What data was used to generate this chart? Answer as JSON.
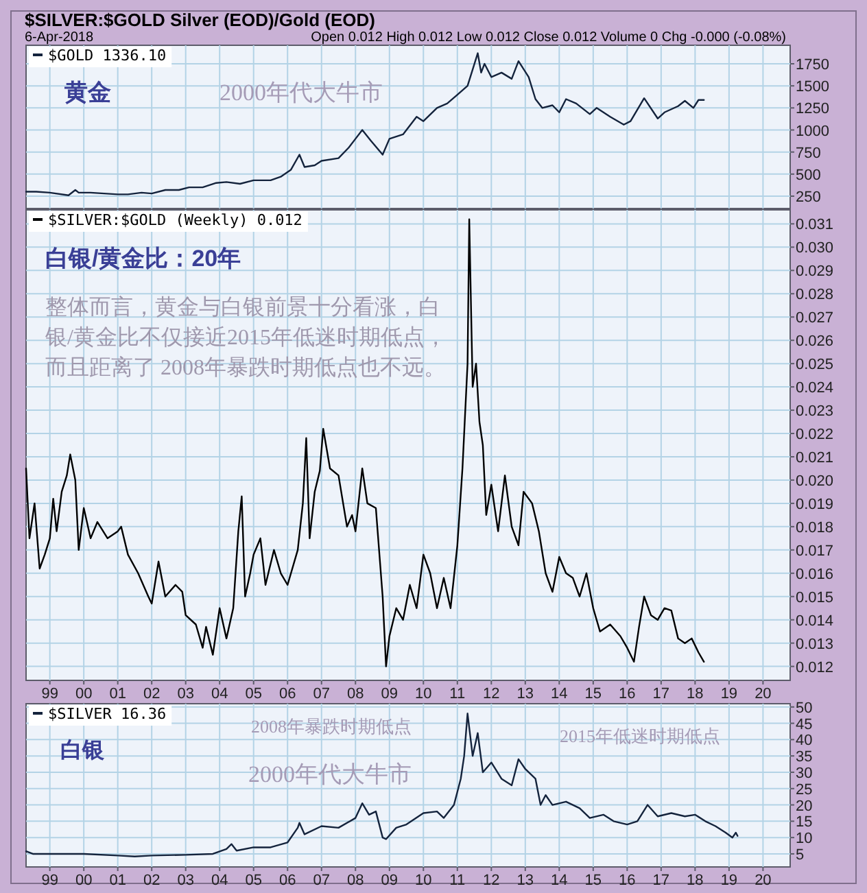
{
  "chart_data": [
    {
      "type": "line",
      "title": "$SILVER:$GOLD Silver (EOD)/Gold (EOD)",
      "subtitle": "6-Apr-2018",
      "annotations": [
        "Open 0.012 High 0.012 Low 0.012 Close 0.012 Volume 0 Chg -0.000 (-0.08%)",
        "黄金",
        "2000年代大牛市"
      ],
      "series": [
        {
          "name": "$GOLD 1336.10",
          "color": "#14233c",
          "x": [
            1998.3,
            1998.6,
            1999.0,
            1999.55,
            1999.75,
            1999.85,
            2000.2,
            2000.6,
            2001.0,
            2001.3,
            2001.7,
            2002.0,
            2002.4,
            2002.8,
            2003.1,
            2003.5,
            2003.9,
            2004.2,
            2004.6,
            2005.0,
            2005.5,
            2005.8,
            2006.1,
            2006.35,
            2006.5,
            2006.8,
            2007.0,
            2007.5,
            2007.8,
            2008.0,
            2008.2,
            2008.45,
            2008.8,
            2009.0,
            2009.4,
            2009.8,
            2010.0,
            2010.4,
            2010.7,
            2011.0,
            2011.3,
            2011.6,
            2011.7,
            2011.8,
            2012.0,
            2012.3,
            2012.6,
            2012.8,
            2013.1,
            2013.3,
            2013.5,
            2013.8,
            2014.0,
            2014.2,
            2014.5,
            2014.9,
            2015.1,
            2015.5,
            2015.9,
            2016.1,
            2016.5,
            2016.9,
            2017.1,
            2017.5,
            2017.7,
            2017.95,
            2018.1,
            2018.26
          ],
          "values": [
            300,
            300,
            290,
            260,
            320,
            290,
            290,
            280,
            270,
            270,
            290,
            280,
            320,
            320,
            350,
            350,
            400,
            410,
            390,
            430,
            430,
            470,
            550,
            720,
            580,
            600,
            650,
            680,
            800,
            900,
            1000,
            880,
            720,
            900,
            950,
            1150,
            1100,
            1250,
            1300,
            1400,
            1500,
            1870,
            1650,
            1750,
            1600,
            1650,
            1580,
            1780,
            1600,
            1350,
            1250,
            1280,
            1200,
            1350,
            1300,
            1180,
            1250,
            1150,
            1060,
            1100,
            1360,
            1130,
            1200,
            1270,
            1330,
            1250,
            1340,
            1340
          ]
        }
      ],
      "xlim": [
        1998.3,
        2020.8
      ],
      "xticks": [
        {
          "value": 1999,
          "label": null
        },
        {
          "value": 2000,
          "label": null
        },
        {
          "value": 2001,
          "label": null
        },
        {
          "value": 2002,
          "label": null
        },
        {
          "value": 2003,
          "label": null
        },
        {
          "value": 2004,
          "label": null
        },
        {
          "value": 2005,
          "label": null
        },
        {
          "value": 2006,
          "label": null
        },
        {
          "value": 2007,
          "label": null
        },
        {
          "value": 2008,
          "label": null
        },
        {
          "value": 2009,
          "label": null
        },
        {
          "value": 2010,
          "label": null
        },
        {
          "value": 2011,
          "label": null
        },
        {
          "value": 2012,
          "label": null
        },
        {
          "value": 2013,
          "label": null
        },
        {
          "value": 2014,
          "label": null
        },
        {
          "value": 2015,
          "label": null
        },
        {
          "value": 2016,
          "label": null
        },
        {
          "value": 2017,
          "label": null
        },
        {
          "value": 2018,
          "label": null
        },
        {
          "value": 2019,
          "label": null
        },
        {
          "value": 2020,
          "label": null
        }
      ],
      "ylim": [
        110,
        1960
      ],
      "yticks": [
        250,
        500,
        750,
        1000,
        1250,
        1500,
        1750
      ],
      "tick_labels": "y",
      "grid": true,
      "legend": "top left"
    },
    {
      "type": "line",
      "annotations": [
        "白银/黄金比：20年",
        "整体而言，黄金与白银前景十分看涨，白银/黄金比不仅接近2015年低迷时期低点，而且距离了 2008年暴跌时期低点也不远。"
      ],
      "series": [
        {
          "name": "$SILVER:$GOLD (Weekly) 0.012",
          "color": "#000000",
          "x": [
            1998.3,
            1998.4,
            1998.55,
            1998.7,
            1998.85,
            1999.0,
            1999.1,
            1999.2,
            1999.35,
            1999.5,
            1999.6,
            1999.75,
            1999.85,
            2000.0,
            2000.2,
            2000.4,
            2000.7,
            2001.0,
            2001.1,
            2001.3,
            2001.6,
            2001.9,
            2002.0,
            2002.2,
            2002.4,
            2002.7,
            2002.9,
            2003.0,
            2003.3,
            2003.5,
            2003.6,
            2003.8,
            2004.0,
            2004.2,
            2004.4,
            2004.55,
            2004.65,
            2004.75,
            2004.9,
            2005.0,
            2005.2,
            2005.35,
            2005.6,
            2005.8,
            2006.0,
            2006.3,
            2006.45,
            2006.55,
            2006.65,
            2006.8,
            2006.95,
            2007.05,
            2007.25,
            2007.5,
            2007.75,
            2007.9,
            2008.0,
            2008.2,
            2008.35,
            2008.6,
            2008.8,
            2008.9,
            2009.0,
            2009.2,
            2009.4,
            2009.6,
            2009.8,
            2010.0,
            2010.2,
            2010.4,
            2010.6,
            2010.8,
            2011.0,
            2011.15,
            2011.3,
            2011.35,
            2011.45,
            2011.55,
            2011.65,
            2011.75,
            2011.85,
            2012.0,
            2012.2,
            2012.4,
            2012.6,
            2012.8,
            2012.95,
            2013.2,
            2013.4,
            2013.6,
            2013.8,
            2014.0,
            2014.2,
            2014.4,
            2014.6,
            2014.8,
            2015.0,
            2015.2,
            2015.5,
            2015.8,
            2016.0,
            2016.2,
            2016.35,
            2016.5,
            2016.7,
            2016.9,
            2017.1,
            2017.3,
            2017.5,
            2017.7,
            2017.9,
            2018.1,
            2018.26
          ],
          "values": [
            0.0205,
            0.0175,
            0.019,
            0.0162,
            0.0168,
            0.0175,
            0.0192,
            0.0178,
            0.0195,
            0.0202,
            0.0211,
            0.02,
            0.017,
            0.0188,
            0.0175,
            0.0182,
            0.0175,
            0.0178,
            0.018,
            0.0168,
            0.016,
            0.015,
            0.0147,
            0.0165,
            0.015,
            0.0155,
            0.0152,
            0.0142,
            0.0138,
            0.0128,
            0.0137,
            0.0125,
            0.0145,
            0.0132,
            0.0145,
            0.0178,
            0.0193,
            0.015,
            0.016,
            0.0168,
            0.0175,
            0.0155,
            0.017,
            0.016,
            0.0155,
            0.017,
            0.019,
            0.0218,
            0.0175,
            0.0195,
            0.0204,
            0.0222,
            0.0205,
            0.0202,
            0.018,
            0.0185,
            0.0178,
            0.0205,
            0.019,
            0.0188,
            0.015,
            0.012,
            0.0133,
            0.0145,
            0.014,
            0.0155,
            0.0145,
            0.0168,
            0.016,
            0.0145,
            0.0158,
            0.0145,
            0.0172,
            0.0205,
            0.025,
            0.0312,
            0.024,
            0.025,
            0.0225,
            0.0215,
            0.0185,
            0.0198,
            0.0178,
            0.0202,
            0.018,
            0.0172,
            0.0195,
            0.019,
            0.0178,
            0.016,
            0.0152,
            0.0167,
            0.016,
            0.0158,
            0.015,
            0.016,
            0.0145,
            0.0135,
            0.0138,
            0.0133,
            0.0128,
            0.0122,
            0.0137,
            0.015,
            0.0142,
            0.014,
            0.0145,
            0.0144,
            0.0132,
            0.013,
            0.0132,
            0.0126,
            0.0122
          ]
        }
      ],
      "xlim": [
        1998.3,
        2020.8
      ],
      "xticks": [
        {
          "value": 1999,
          "label": "99"
        },
        {
          "value": 2000,
          "label": "00"
        },
        {
          "value": 2001,
          "label": "01"
        },
        {
          "value": 2002,
          "label": "02"
        },
        {
          "value": 2003,
          "label": "03"
        },
        {
          "value": 2004,
          "label": "04"
        },
        {
          "value": 2005,
          "label": "05"
        },
        {
          "value": 2006,
          "label": "06"
        },
        {
          "value": 2007,
          "label": "07"
        },
        {
          "value": 2008,
          "label": "08"
        },
        {
          "value": 2009,
          "label": "09"
        },
        {
          "value": 2010,
          "label": "10"
        },
        {
          "value": 2011,
          "label": "11"
        },
        {
          "value": 2012,
          "label": "12"
        },
        {
          "value": 2013,
          "label": "13"
        },
        {
          "value": 2014,
          "label": "14"
        },
        {
          "value": 2015,
          "label": "15"
        },
        {
          "value": 2016,
          "label": "16"
        },
        {
          "value": 2017,
          "label": "17"
        },
        {
          "value": 2018,
          "label": "18"
        },
        {
          "value": 2019,
          "label": "19"
        },
        {
          "value": 2020,
          "label": "20"
        }
      ],
      "ylim": [
        0.0114,
        0.0316
      ],
      "yticks": [
        0.012,
        0.013,
        0.014,
        0.015,
        0.016,
        0.017,
        0.018,
        0.019,
        {
          "value": 0.02,
          "label": "0.020"
        },
        0.021,
        0.022,
        0.023,
        0.024,
        0.025,
        0.026,
        0.027,
        0.028,
        0.029,
        {
          "value": 0.03,
          "label": "0.030"
        },
        0.031
      ],
      "grid": true,
      "legend": "top left"
    },
    {
      "type": "line",
      "annotations": [
        "白银",
        "2008年暴跌时期低点",
        "2015年低迷时期低点",
        "2000年代大牛市"
      ],
      "series": [
        {
          "name": "$SILVER 16.36",
          "color": "#14233c",
          "x": [
            1998.3,
            1998.5,
            1999.0,
            2000.0,
            2001.0,
            2001.5,
            2002.0,
            2003.0,
            2003.8,
            2004.2,
            2004.35,
            2004.5,
            2005.0,
            2005.5,
            2006.0,
            2006.3,
            2006.35,
            2006.5,
            2007.0,
            2007.5,
            2008.0,
            2008.2,
            2008.4,
            2008.6,
            2008.8,
            2008.9,
            2009.2,
            2009.5,
            2010.0,
            2010.4,
            2010.6,
            2010.9,
            2011.1,
            2011.2,
            2011.3,
            2011.45,
            2011.6,
            2011.75,
            2012.0,
            2012.3,
            2012.6,
            2012.8,
            2013.0,
            2013.3,
            2013.45,
            2013.6,
            2013.8,
            2014.2,
            2014.6,
            2014.9,
            2015.3,
            2015.6,
            2016.0,
            2016.3,
            2016.6,
            2016.9,
            2017.3,
            2017.7,
            2018.0,
            2018.3,
            2018.6,
            2018.9,
            2019.1,
            2019.2,
            2019.25
          ],
          "values": [
            5.8,
            5.0,
            5.0,
            5.0,
            4.5,
            4.2,
            4.5,
            4.7,
            5.0,
            6.5,
            8.0,
            6.0,
            7.0,
            7.0,
            8.5,
            13.0,
            14.5,
            11.0,
            13.5,
            13.0,
            16,
            20.5,
            17,
            18,
            10,
            9.5,
            13,
            14,
            17.5,
            18,
            16,
            20,
            28,
            35,
            48,
            35,
            42,
            30,
            33,
            28,
            26,
            34,
            31,
            28,
            20,
            23,
            20,
            21,
            19,
            16,
            17,
            15,
            14,
            15,
            20,
            16.5,
            17.5,
            16.5,
            17,
            15,
            13.5,
            11.5,
            10,
            11.5,
            10.5
          ]
        }
      ],
      "xlim": [
        1998.3,
        2020.8
      ],
      "xticks": [
        {
          "value": 1999,
          "label": "99"
        },
        {
          "value": 2000,
          "label": "00"
        },
        {
          "value": 2001,
          "label": "01"
        },
        {
          "value": 2002,
          "label": "02"
        },
        {
          "value": 2003,
          "label": "03"
        },
        {
          "value": 2004,
          "label": "04"
        },
        {
          "value": 2005,
          "label": "05"
        },
        {
          "value": 2006,
          "label": "06"
        },
        {
          "value": 2007,
          "label": "07"
        },
        {
          "value": 2008,
          "label": "08"
        },
        {
          "value": 2009,
          "label": "09"
        },
        {
          "value": 2010,
          "label": "10"
        },
        {
          "value": 2011,
          "label": "11"
        },
        {
          "value": 2012,
          "label": "12"
        },
        {
          "value": 2013,
          "label": "13"
        },
        {
          "value": 2014,
          "label": "14"
        },
        {
          "value": 2015,
          "label": "15"
        },
        {
          "value": 2016,
          "label": "16"
        },
        {
          "value": 2017,
          "label": "17"
        },
        {
          "value": 2018,
          "label": "18"
        },
        {
          "value": 2019,
          "label": "19"
        },
        {
          "value": 2020,
          "label": "20"
        }
      ],
      "ylim": [
        1,
        51
      ],
      "yticks": [
        5,
        10,
        15,
        20,
        25,
        30,
        35,
        40,
        45,
        50
      ],
      "grid": true,
      "legend": "top left"
    }
  ]
}
